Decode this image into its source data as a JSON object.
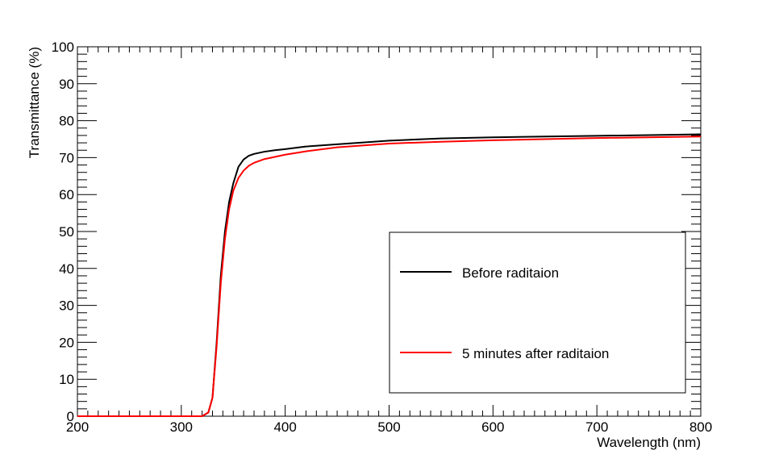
{
  "chart_data": {
    "type": "line",
    "title": "",
    "xlabel": "Wavelength (nm)",
    "ylabel": "Transmittance (%)",
    "xlim": [
      200,
      800
    ],
    "ylim": [
      0,
      100
    ],
    "x_ticks": [
      200,
      300,
      400,
      500,
      600,
      700,
      800
    ],
    "y_ticks": [
      0,
      10,
      20,
      30,
      40,
      50,
      60,
      70,
      80,
      90,
      100
    ],
    "x_tick_labels": [
      "200",
      "300",
      "400",
      "500",
      "600",
      "700",
      "800"
    ],
    "y_tick_labels": [
      "0",
      "10",
      "20",
      "30",
      "40",
      "50",
      "60",
      "70",
      "80",
      "90",
      "100"
    ],
    "grid": false,
    "legend_position": "bottom-right",
    "series": [
      {
        "name": "Before raditaion",
        "color": "#000000",
        "x": [
          200,
          320,
          326,
          330,
          334,
          338,
          342,
          346,
          350,
          355,
          360,
          365,
          370,
          380,
          390,
          400,
          420,
          450,
          500,
          550,
          600,
          650,
          700,
          750,
          800
        ],
        "y": [
          0,
          0,
          1,
          5,
          20,
          38,
          50,
          58,
          63,
          67.5,
          69.5,
          70.5,
          71,
          71.6,
          72,
          72.3,
          73,
          73.6,
          74.6,
          75.2,
          75.5,
          75.7,
          75.9,
          76.1,
          76.3
        ]
      },
      {
        "name": "5 minutes after raditaion",
        "color": "#ff0000",
        "x": [
          200,
          320,
          326,
          330,
          334,
          338,
          342,
          346,
          350,
          355,
          360,
          365,
          370,
          380,
          390,
          400,
          420,
          450,
          500,
          550,
          600,
          650,
          700,
          750,
          800
        ],
        "y": [
          0,
          0,
          1,
          5,
          19,
          36,
          48,
          56,
          61,
          64.5,
          66.5,
          67.8,
          68.6,
          69.6,
          70.2,
          70.8,
          71.7,
          72.8,
          73.8,
          74.3,
          74.7,
          75,
          75.3,
          75.5,
          75.7
        ]
      }
    ]
  }
}
